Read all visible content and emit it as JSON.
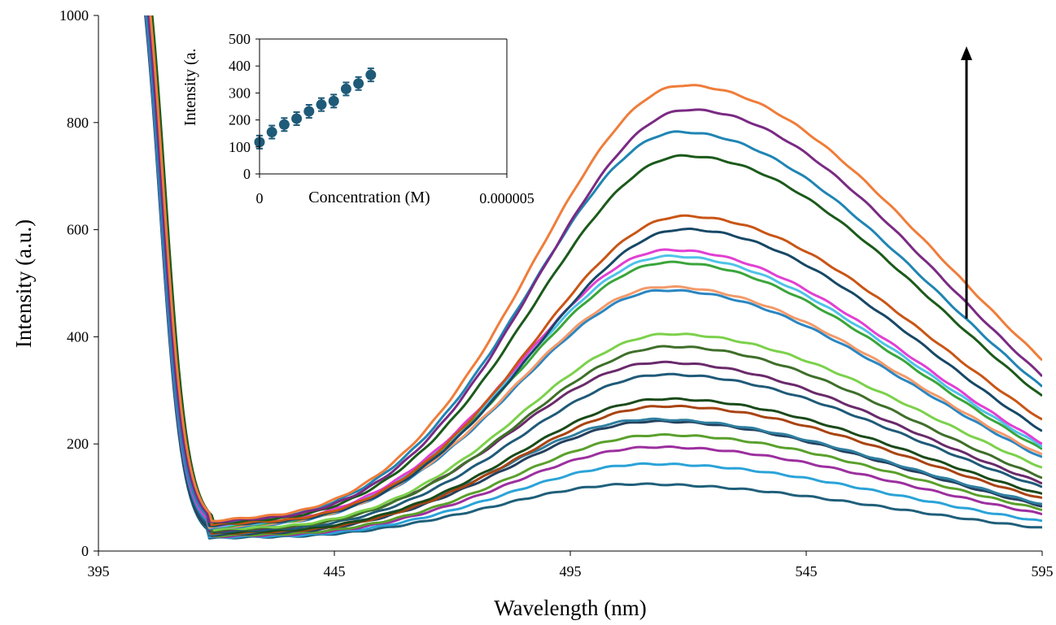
{
  "chart_data": [
    {
      "type": "line",
      "xlabel": "Wavelength (nm)",
      "ylabel": "Intensity (a.u.)",
      "xlim": [
        395,
        595
      ],
      "ylim": [
        0,
        1000
      ],
      "xticks": [
        "395",
        "445",
        "495",
        "545",
        "595"
      ],
      "yticks": [
        "0",
        "200",
        "400",
        "600",
        "800",
        "1000"
      ],
      "grid": false,
      "legend": "none",
      "annotation": "upward arrow near 580 nm indicating intensity increase",
      "series": [
        {
          "peak_wavelength": 509,
          "peak_intensity": 115,
          "value_at_595": 33,
          "color": "#1f5f7a"
        },
        {
          "peak_wavelength": 512,
          "peak_intensity": 152,
          "value_at_595": 45,
          "color": "#2aa3d8"
        },
        {
          "peak_wavelength": 513,
          "peak_intensity": 183,
          "value_at_595": 58,
          "color": "#9c2f9f"
        },
        {
          "peak_wavelength": 514,
          "peak_intensity": 205,
          "value_at_595": 66,
          "color": "#5aa02c"
        },
        {
          "peak_wavelength": 513,
          "peak_intensity": 230,
          "value_at_595": 72,
          "color": "#24405e"
        },
        {
          "peak_wavelength": 512,
          "peak_intensity": 233,
          "value_at_595": 75,
          "color": "#2f7fa0"
        },
        {
          "peak_wavelength": 515,
          "peak_intensity": 257,
          "value_at_595": 85,
          "color": "#a94412"
        },
        {
          "peak_wavelength": 515,
          "peak_intensity": 270,
          "value_at_595": 92,
          "color": "#1a4a1a"
        },
        {
          "peak_wavelength": 515,
          "peak_intensity": 315,
          "value_at_595": 105,
          "color": "#1f5a78"
        },
        {
          "peak_wavelength": 514,
          "peak_intensity": 337,
          "value_at_595": 112,
          "color": "#6a2a6a"
        },
        {
          "peak_wavelength": 516,
          "peak_intensity": 366,
          "value_at_595": 122,
          "color": "#3f6f2a"
        },
        {
          "peak_wavelength": 516,
          "peak_intensity": 389,
          "value_at_595": 140,
          "color": "#7cd14b"
        },
        {
          "peak_wavelength": 515,
          "peak_intensity": 470,
          "value_at_595": 158,
          "color": "#2b86c1"
        },
        {
          "peak_wavelength": 515,
          "peak_intensity": 476,
          "value_at_595": 162,
          "color": "#f39a6a"
        },
        {
          "peak_wavelength": 516,
          "peak_intensity": 521,
          "value_at_595": 172,
          "color": "#3aa53a"
        },
        {
          "peak_wavelength": 516,
          "peak_intensity": 532,
          "value_at_595": 177,
          "color": "#4fc3e8"
        },
        {
          "peak_wavelength": 516,
          "peak_intensity": 543,
          "value_at_595": 182,
          "color": "#e23fd3"
        },
        {
          "peak_wavelength": 519,
          "peak_intensity": 581,
          "value_at_595": 205,
          "color": "#174866"
        },
        {
          "peak_wavelength": 519,
          "peak_intensity": 605,
          "value_at_595": 225,
          "color": "#c95515"
        },
        {
          "peak_wavelength": 519,
          "peak_intensity": 717,
          "value_at_595": 268,
          "color": "#1b5a1b"
        },
        {
          "peak_wavelength": 518,
          "peak_intensity": 761,
          "value_at_595": 285,
          "color": "#1f85b3"
        },
        {
          "peak_wavelength": 520,
          "peak_intensity": 802,
          "value_at_595": 305,
          "color": "#7a2a83"
        },
        {
          "peak_wavelength": 519,
          "peak_intensity": 847,
          "value_at_595": 335,
          "color": "#ef7d3a"
        }
      ]
    },
    {
      "type": "scatter",
      "xlabel": "Concentration (M)",
      "ylabel": "Intensity (a.",
      "xlim": [
        0,
        5e-06
      ],
      "ylim": [
        0,
        500
      ],
      "xticks": [
        "0",
        "0.000005"
      ],
      "yticks": [
        "0",
        "100",
        "200",
        "300",
        "400",
        "500"
      ],
      "error_bars": true,
      "marker_color": "#1f5a78",
      "points": [
        {
          "x": 0.0,
          "y": 118
        },
        {
          "x": 2.5e-07,
          "y": 155
        },
        {
          "x": 5e-07,
          "y": 183
        },
        {
          "x": 7.5e-07,
          "y": 205
        },
        {
          "x": 1e-06,
          "y": 232
        },
        {
          "x": 1.25e-06,
          "y": 257
        },
        {
          "x": 1.5e-06,
          "y": 270
        },
        {
          "x": 1.75e-06,
          "y": 315
        },
        {
          "x": 2e-06,
          "y": 335
        },
        {
          "x": 2.25e-06,
          "y": 367
        }
      ]
    }
  ]
}
